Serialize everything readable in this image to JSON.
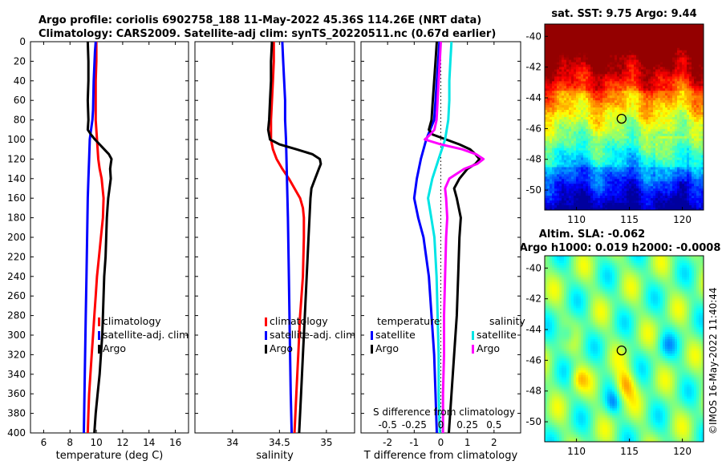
{
  "title": {
    "line1": "Argo profile: coriolis 6902758_188 11-May-2022 45.36S 114.26E (NRT data)",
    "line2": "Climatology: CARS2009. Satellite-adj clim: synTS_20220511.nc (0.67d earlier)"
  },
  "sst_title": "sat. SST: 9.75 Argo: 9.44",
  "sla_title1": "Altim. SLA: -0.062",
  "sla_title2": "Argo h1000: 0.019 h2000: -0.0008",
  "side_label": "©IMOS 16-May-2022 11:40:44",
  "colors": {
    "climatology": "#ff0000",
    "satellite": "#0000ff",
    "argo": "#000000",
    "sal_satellite": "#00e5e5",
    "sal_argo": "#ff00ff"
  },
  "chart_data": [
    {
      "id": "temperature",
      "type": "line",
      "xlabel": "temperature (deg C)",
      "ylabel": "",
      "xlim": [
        5,
        17
      ],
      "ylim": [
        0,
        400
      ],
      "y_inverted": true,
      "xticks": [
        6,
        8,
        10,
        12,
        14,
        16
      ],
      "xtick_labels": [
        "6",
        "8",
        "10",
        "12",
        "14",
        "16"
      ],
      "yticks": [
        0,
        20,
        40,
        60,
        80,
        100,
        120,
        140,
        160,
        180,
        200,
        220,
        240,
        260,
        280,
        300,
        320,
        340,
        360,
        380,
        400
      ],
      "ytick_labels": [
        "0",
        "20",
        "40",
        "60",
        "80",
        "100",
        "120",
        "140",
        "160",
        "180",
        "200",
        "220",
        "240",
        "260",
        "280",
        "300",
        "320",
        "340",
        "360",
        "380",
        "400"
      ],
      "legend": [
        "climatology",
        "satellite-adj. clim",
        "Argo"
      ],
      "series": [
        {
          "name": "climatology",
          "color": "#ff0000",
          "depth": [
            0,
            20,
            40,
            60,
            80,
            90,
            100,
            110,
            120,
            130,
            140,
            160,
            180,
            200,
            220,
            240,
            260,
            280,
            300,
            320,
            340,
            360,
            380,
            400
          ],
          "values": [
            10.0,
            10.0,
            9.95,
            9.95,
            9.95,
            10.0,
            10.05,
            10.1,
            10.15,
            10.25,
            10.4,
            10.55,
            10.5,
            10.35,
            10.2,
            10.05,
            9.95,
            9.85,
            9.75,
            9.65,
            9.55,
            9.45,
            9.4,
            9.35
          ]
        },
        {
          "name": "satellite-adj. clim",
          "color": "#0000ff",
          "depth": [
            0,
            10,
            40,
            70,
            80,
            90,
            100,
            120,
            140,
            160,
            200,
            240,
            280,
            320,
            360,
            400
          ],
          "values": [
            9.95,
            9.9,
            9.8,
            9.75,
            9.7,
            9.6,
            9.5,
            9.45,
            9.4,
            9.35,
            9.3,
            9.25,
            9.2,
            9.15,
            9.1,
            9.05
          ]
        },
        {
          "name": "Argo",
          "color": "#000000",
          "depth": [
            0,
            20,
            40,
            60,
            80,
            90,
            95,
            100,
            105,
            110,
            115,
            120,
            125,
            130,
            140,
            150,
            160,
            170,
            180,
            200,
            220,
            240,
            260,
            280,
            300,
            320,
            340,
            360,
            380,
            400
          ],
          "values": [
            9.35,
            9.4,
            9.4,
            9.35,
            9.4,
            9.35,
            9.6,
            9.9,
            10.25,
            10.6,
            10.95,
            11.15,
            11.1,
            11.05,
            11.1,
            11.0,
            10.9,
            10.85,
            10.8,
            10.75,
            10.7,
            10.6,
            10.55,
            10.5,
            10.45,
            10.35,
            10.25,
            10.1,
            9.95,
            9.85
          ]
        }
      ]
    },
    {
      "id": "salinity",
      "type": "line",
      "xlabel": "salinity",
      "ylabel": "",
      "xlim": [
        33.6,
        35.3
      ],
      "ylim": [
        0,
        400
      ],
      "y_inverted": true,
      "xticks": [
        34,
        34.5,
        35
      ],
      "xtick_labels": [
        "34",
        "34.5",
        "35"
      ],
      "legend": [
        "climatology",
        "satellite-adj. clim",
        "Argo"
      ],
      "series": [
        {
          "name": "climatology",
          "color": "#ff0000",
          "depth": [
            0,
            20,
            40,
            60,
            80,
            100,
            110,
            120,
            130,
            140,
            150,
            160,
            170,
            180,
            200,
            240,
            280,
            320,
            360,
            400
          ],
          "values": [
            34.44,
            34.44,
            34.43,
            34.42,
            34.41,
            34.41,
            34.43,
            34.47,
            34.53,
            34.6,
            34.66,
            34.72,
            34.75,
            34.76,
            34.76,
            34.75,
            34.72,
            34.7,
            34.68,
            34.66
          ]
        },
        {
          "name": "satellite-adj. clim",
          "color": "#0000ff",
          "depth": [
            0,
            20,
            40,
            60,
            80,
            100,
            140,
            180,
            240,
            300,
            360,
            400
          ],
          "values": [
            34.53,
            34.54,
            34.55,
            34.56,
            34.56,
            34.57,
            34.58,
            34.59,
            34.6,
            34.61,
            34.62,
            34.63
          ]
        },
        {
          "name": "Argo",
          "color": "#000000",
          "depth": [
            0,
            20,
            40,
            60,
            80,
            90,
            100,
            105,
            110,
            115,
            120,
            125,
            130,
            140,
            150,
            160,
            180,
            200,
            240,
            280,
            320,
            360,
            400
          ],
          "values": [
            34.42,
            34.41,
            34.41,
            34.4,
            34.39,
            34.38,
            34.4,
            34.5,
            34.68,
            34.85,
            34.93,
            34.94,
            34.92,
            34.88,
            34.84,
            34.83,
            34.82,
            34.81,
            34.79,
            34.77,
            34.75,
            34.73,
            34.71
          ]
        }
      ]
    },
    {
      "id": "difference",
      "type": "line",
      "xlabel": "T difference from climatology",
      "xlabel_top": "S difference from climatology",
      "xlim": [
        -3,
        3
      ],
      "ylim": [
        0,
        400
      ],
      "y_inverted": true,
      "xticks": [
        -2,
        -1,
        0,
        1,
        2
      ],
      "xtick_labels": [
        "-2",
        "-1",
        "0",
        "1",
        "2"
      ],
      "s_ticks": [
        -0.5,
        -0.25,
        0,
        0.25,
        0.5
      ],
      "s_tick_labels": [
        "-0.5",
        "-0.25",
        "0",
        "0.25",
        "0.5"
      ],
      "s_scale": 4,
      "zero_line": "dotted",
      "legend_temperature_title": "temperature",
      "legend_salinity_title": "salinity",
      "legend_temperature": [
        "satellite",
        "Argo"
      ],
      "legend_salinity": [
        "satellite",
        "Argo"
      ],
      "series": [
        {
          "name": "temperature satellite",
          "color": "#0000ff",
          "depth": [
            0,
            20,
            40,
            60,
            80,
            100,
            120,
            140,
            160,
            180,
            200,
            240,
            280,
            320,
            360,
            400
          ],
          "values": [
            -0.05,
            -0.1,
            -0.15,
            -0.2,
            -0.25,
            -0.55,
            -0.75,
            -0.9,
            -1.0,
            -0.85,
            -0.65,
            -0.45,
            -0.35,
            -0.25,
            -0.2,
            -0.15
          ]
        },
        {
          "name": "temperature Argo",
          "color": "#000000",
          "depth": [
            0,
            20,
            40,
            60,
            80,
            90,
            95,
            100,
            105,
            110,
            115,
            120,
            125,
            130,
            140,
            150,
            160,
            180,
            200,
            240,
            280,
            320,
            360,
            400
          ],
          "values": [
            -0.15,
            -0.2,
            -0.25,
            -0.3,
            -0.35,
            -0.45,
            -0.3,
            0.2,
            0.7,
            1.1,
            1.3,
            1.45,
            1.3,
            1.0,
            0.7,
            0.5,
            0.6,
            0.75,
            0.7,
            0.65,
            0.6,
            0.5,
            0.4,
            0.3
          ]
        },
        {
          "name": "salinity satellite",
          "color": "#00e5e5",
          "depth": [
            0,
            20,
            40,
            60,
            80,
            100,
            120,
            140,
            160,
            180,
            200,
            240,
            280,
            320,
            360,
            400
          ],
          "values": [
            0.1,
            0.09,
            0.08,
            0.08,
            0.07,
            0.04,
            -0.02,
            -0.08,
            -0.12,
            -0.09,
            -0.06,
            -0.04,
            -0.03,
            -0.02,
            -0.02,
            -0.01
          ]
        },
        {
          "name": "salinity Argo",
          "color": "#ff00ff",
          "depth": [
            0,
            20,
            40,
            60,
            80,
            90,
            95,
            100,
            105,
            110,
            115,
            120,
            125,
            130,
            140,
            150,
            160,
            180,
            200,
            240,
            280,
            320,
            360,
            400
          ],
          "values": [
            0.0,
            -0.01,
            -0.02,
            -0.03,
            -0.04,
            -0.06,
            -0.1,
            -0.15,
            0.0,
            0.2,
            0.33,
            0.4,
            0.34,
            0.22,
            0.08,
            0.04,
            0.05,
            0.06,
            0.05,
            0.04,
            0.03,
            0.03,
            0.02,
            0.02
          ]
        }
      ]
    },
    {
      "id": "sst_map",
      "type": "heatmap",
      "title": "sat. SST: 9.75 Argo: 9.44",
      "xlim": [
        107,
        122
      ],
      "ylim": [
        -51.3,
        -39.2
      ],
      "xticks": [
        110,
        115,
        120
      ],
      "xtick_labels": [
        "110",
        "115",
        "120"
      ],
      "yticks": [
        -40,
        -42,
        -44,
        -46,
        -48,
        -50
      ],
      "ytick_labels": [
        "-40",
        "-42",
        "-44",
        "-46",
        "-48",
        "-50"
      ],
      "marker": {
        "lon": 114.26,
        "lat": -45.36
      },
      "colormap": "jet"
    },
    {
      "id": "sla_map",
      "type": "heatmap",
      "title": "Altim. SLA: -0.062",
      "subtitle": "Argo h1000: 0.019 h2000: -0.0008",
      "xlim": [
        107,
        122
      ],
      "ylim": [
        -51.3,
        -39.2
      ],
      "xticks": [
        110,
        115,
        120
      ],
      "xtick_labels": [
        "110",
        "115",
        "120"
      ],
      "yticks": [
        -40,
        -42,
        -44,
        -46,
        -48,
        -50
      ],
      "ytick_labels": [
        "-40",
        "-42",
        "-44",
        "-46",
        "-48",
        "-50"
      ],
      "marker": {
        "lon": 114.26,
        "lat": -45.36
      },
      "colormap": "jet"
    }
  ]
}
